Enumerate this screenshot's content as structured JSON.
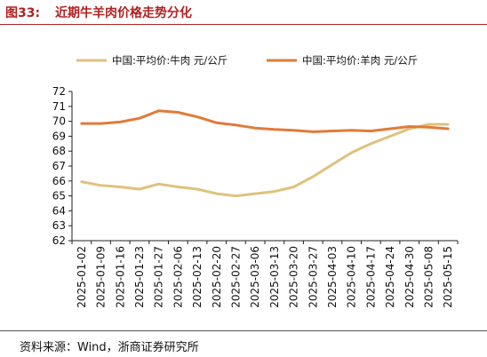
{
  "figure": {
    "number": "图33:",
    "title": "近期牛羊肉价格走势分化",
    "source": "资料来源：Wind，浙商证券研究所"
  },
  "colors": {
    "title": "#b22222",
    "beef": "#dfc27d",
    "mutton": "#e07b39"
  },
  "chart_data": {
    "type": "line",
    "categories": [
      "2025-01-02",
      "2025-01-09",
      "2025-01-16",
      "2025-01-23",
      "2025-01-27",
      "2025-02-06",
      "2025-02-13",
      "2025-02-20",
      "2025-02-27",
      "2025-03-06",
      "2025-03-13",
      "2025-03-20",
      "2025-03-27",
      "2025-04-03",
      "2025-04-10",
      "2025-04-17",
      "2025-04-24",
      "2025-04-30",
      "2025-05-08",
      "2025-05-15"
    ],
    "series": [
      {
        "name": "中国:平均价:牛肉 元/公斤",
        "color": "#dfc27d",
        "values": [
          65.95,
          65.7,
          65.6,
          65.45,
          65.8,
          65.6,
          65.45,
          65.15,
          65.0,
          65.15,
          65.3,
          65.6,
          66.3,
          67.1,
          67.9,
          68.5,
          69.0,
          69.5,
          69.8,
          69.8
        ]
      },
      {
        "name": "中国:平均价:羊肉 元/公斤",
        "color": "#e07b39",
        "values": [
          69.85,
          69.85,
          69.95,
          70.2,
          70.7,
          70.6,
          70.3,
          69.9,
          69.75,
          69.55,
          69.45,
          69.4,
          69.3,
          69.35,
          69.4,
          69.35,
          69.5,
          69.65,
          69.6,
          69.5
        ]
      }
    ],
    "ylim": [
      62,
      72
    ],
    "yticks": [
      62,
      63,
      64,
      65,
      66,
      67,
      68,
      69,
      70,
      71,
      72
    ],
    "legend_position": "top",
    "grid": false
  }
}
